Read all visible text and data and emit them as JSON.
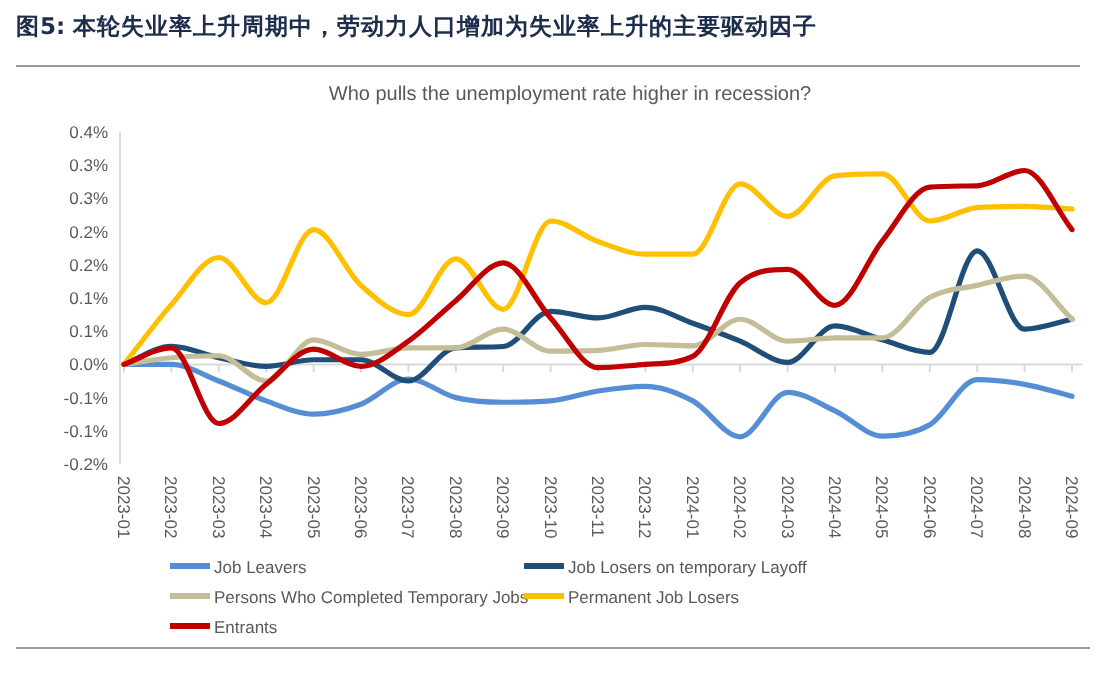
{
  "chart_data": {
    "type": "line",
    "title": "图5: 本轮失业率上升周期中，劳动力人口增加为失业率上升的主要驱动因子",
    "subtitle": "Who pulls the unemployment rate higher in recession?",
    "categories": [
      "2023-01",
      "2023-02",
      "2023-03",
      "2023-04",
      "2023-05",
      "2023-06",
      "2023-07",
      "2023-08",
      "2023-09",
      "2023-10",
      "2023-11",
      "2023-12",
      "2024-01",
      "2024-02",
      "2024-03",
      "2024-04",
      "2024-05",
      "2024-06",
      "2024-07",
      "2024-08",
      "2024-09"
    ],
    "series": [
      {
        "name": "Job Leavers",
        "color": "#558ed5",
        "values": [
          0,
          0,
          -0.025,
          -0.055,
          -0.075,
          -0.06,
          -0.022,
          -0.05,
          -0.057,
          -0.055,
          -0.04,
          -0.033,
          -0.055,
          -0.109,
          -0.042,
          -0.07,
          -0.108,
          -0.091,
          -0.023,
          -0.03,
          -0.048
        ]
      },
      {
        "name": "Job Losers on temporary Layoff",
        "color": "#1f4e79",
        "values": [
          0,
          0.027,
          0.01,
          -0.003,
          0.007,
          0.007,
          -0.025,
          0.025,
          0.027,
          0.08,
          0.07,
          0.086,
          0.062,
          0.035,
          0.003,
          0.058,
          0.037,
          0.018,
          0.171,
          0.053,
          0.068
        ]
      },
      {
        "name": "Persons Who Completed Temporary Jobs",
        "color": "#c4bd97",
        "values": [
          0,
          0.01,
          0.013,
          -0.025,
          0.037,
          0.015,
          0.025,
          0.025,
          0.053,
          0.02,
          0.021,
          0.03,
          0.028,
          0.068,
          0.035,
          0.04,
          0.04,
          0.101,
          0.119,
          0.133,
          0.068
        ]
      },
      {
        "name": "Permanent Job Losers",
        "color": "#ffc000",
        "values": [
          0,
          0.09,
          0.161,
          0.093,
          0.203,
          0.119,
          0.075,
          0.159,
          0.083,
          0.216,
          0.185,
          0.166,
          0.166,
          0.272,
          0.223,
          0.284,
          0.287,
          0.216,
          0.236,
          0.238,
          0.234
        ]
      },
      {
        "name": "Entrants",
        "color": "#c00000",
        "values": [
          0,
          0.025,
          -0.089,
          -0.03,
          0.023,
          -0.003,
          0.035,
          0.096,
          0.153,
          0.07,
          -0.005,
          0,
          0.012,
          0.123,
          0.143,
          0.089,
          0.186,
          0.267,
          0.269,
          0.292,
          0.203
        ]
      }
    ],
    "ylim": [
      -0.15,
      0.35
    ],
    "yticks": [
      {
        "value": -0.15,
        "label": "-0.2%"
      },
      {
        "value": -0.1,
        "label": "-0.1%"
      },
      {
        "value": -0.05,
        "label": "-0.1%"
      },
      {
        "value": 0,
        "label": "0.0%"
      },
      {
        "value": 0.05,
        "label": "0.1%"
      },
      {
        "value": 0.1,
        "label": "0.1%"
      },
      {
        "value": 0.15,
        "label": "0.2%"
      },
      {
        "value": 0.2,
        "label": "0.2%"
      },
      {
        "value": 0.25,
        "label": "0.3%"
      },
      {
        "value": 0.3,
        "label": "0.3%"
      },
      {
        "value": 0.35,
        "label": "0.4%"
      }
    ],
    "legend": "bottom"
  }
}
